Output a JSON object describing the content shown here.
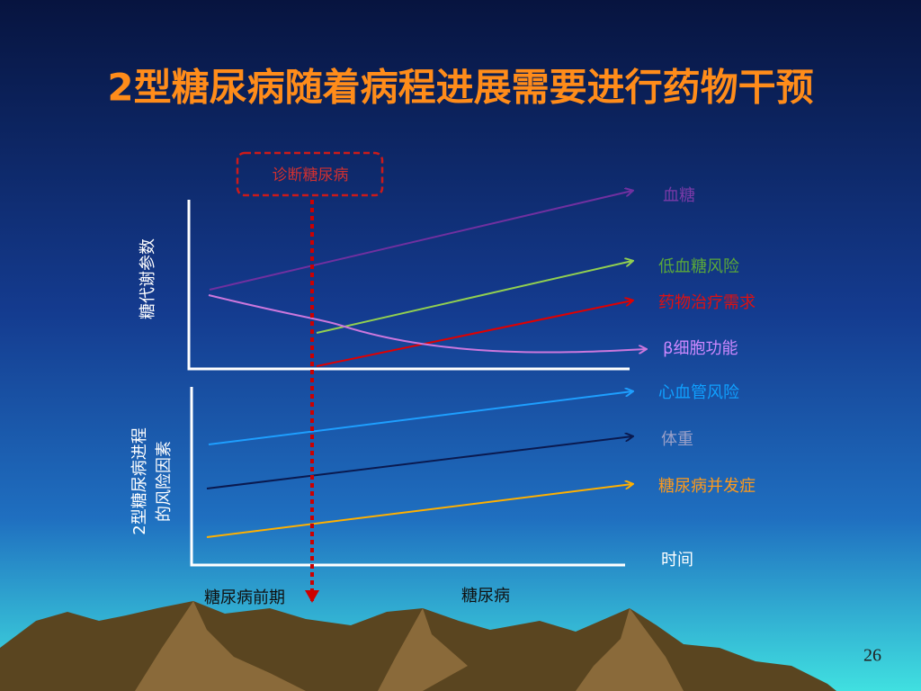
{
  "title": "2型糖尿病随着病程进展需要进行药物干预",
  "diagnosis_label": "诊断糖尿病",
  "upper_axis_label": "糖代谢参数",
  "lower_axis_label": [
    "2型糖尿病进程",
    "的风险因素"
  ],
  "curves": [
    {
      "label": "血糖"
    },
    {
      "label": "低血糖风险"
    },
    {
      "label": "药物治疗需求"
    },
    {
      "label": "β细胞功能"
    },
    {
      "label": "心血管风险"
    },
    {
      "label": "体重"
    },
    {
      "label": "糖尿病并发症"
    }
  ],
  "time_label": "时间",
  "stages": [
    "糖尿病前期",
    "糖尿病"
  ],
  "page_number": "26"
}
